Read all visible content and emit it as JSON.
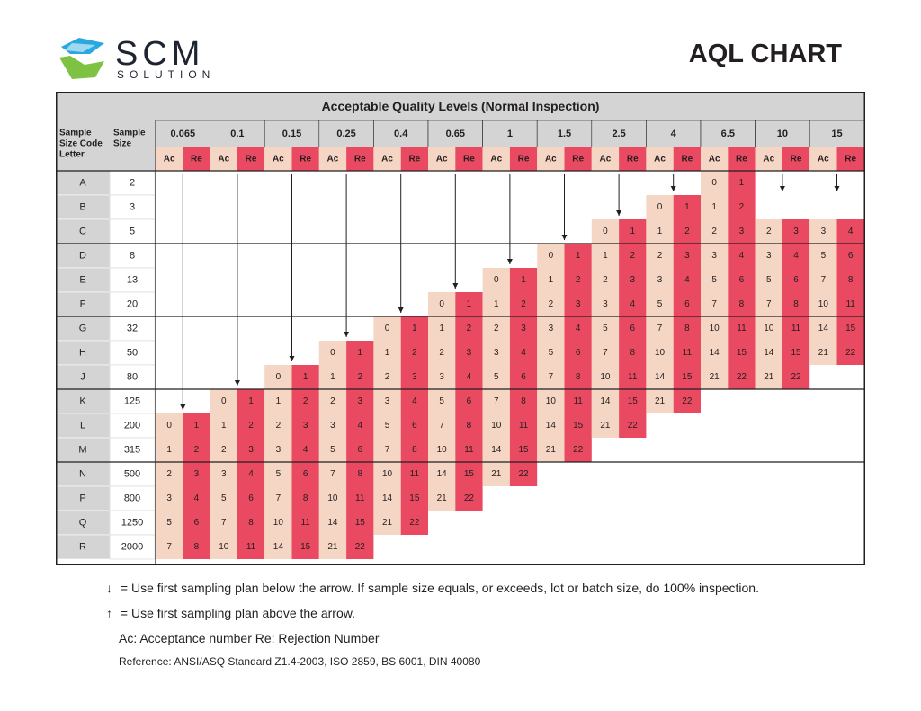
{
  "brand": {
    "name": "SCM",
    "sub": "SOLUTION"
  },
  "title": "AQL CHART",
  "table": {
    "header": "Acceptable Quality Levels (Normal Inspection)",
    "code_col_label": [
      "Sample",
      "Size Code",
      "Letter"
    ],
    "size_col_label": [
      "Sample",
      "Size"
    ],
    "ac_label": "Ac",
    "re_label": "Re",
    "aql_levels": [
      "0.065",
      "0.1",
      "0.15",
      "0.25",
      "0.4",
      "0.65",
      "1",
      "1.5",
      "2.5",
      "4",
      "6.5",
      "10",
      "15"
    ],
    "rows": [
      {
        "code": "A",
        "size": "2"
      },
      {
        "code": "B",
        "size": "3"
      },
      {
        "code": "C",
        "size": "5"
      },
      {
        "code": "D",
        "size": "8"
      },
      {
        "code": "E",
        "size": "13"
      },
      {
        "code": "F",
        "size": "20"
      },
      {
        "code": "G",
        "size": "32"
      },
      {
        "code": "H",
        "size": "50"
      },
      {
        "code": "J",
        "size": "80"
      },
      {
        "code": "K",
        "size": "125"
      },
      {
        "code": "L",
        "size": "200"
      },
      {
        "code": "M",
        "size": "315"
      },
      {
        "code": "N",
        "size": "500"
      },
      {
        "code": "P",
        "size": "800"
      },
      {
        "code": "Q",
        "size": "1250"
      },
      {
        "code": "R",
        "size": "2000"
      }
    ],
    "numbers": [
      [
        0,
        1
      ],
      [
        1,
        2
      ],
      [
        2,
        3
      ],
      [
        3,
        4
      ],
      [
        5,
        6
      ],
      [
        7,
        8
      ],
      [
        10,
        11
      ],
      [
        14,
        15
      ],
      [
        21,
        22
      ]
    ],
    "colors": {
      "ac": "#f5d6c4",
      "re": "#ea4a61",
      "header_bg": "#d4d4d4",
      "border": "#231f20"
    }
  },
  "legend": {
    "down_arrow": "↓",
    "down_text": "= Use first sampling plan below the arrow.  If sample size equals, or exceeds, lot or batch size, do 100% inspection.",
    "up_arrow": "↑",
    "up_text": "= Use first sampling plan above the arrow.",
    "acre_text": "Ac: Acceptance number  Re: Rejection Number",
    "reference": "Reference: ANSI/ASQ Standard Z1.4-2003, ISO 2859, BS 6001, DIN 40080"
  }
}
